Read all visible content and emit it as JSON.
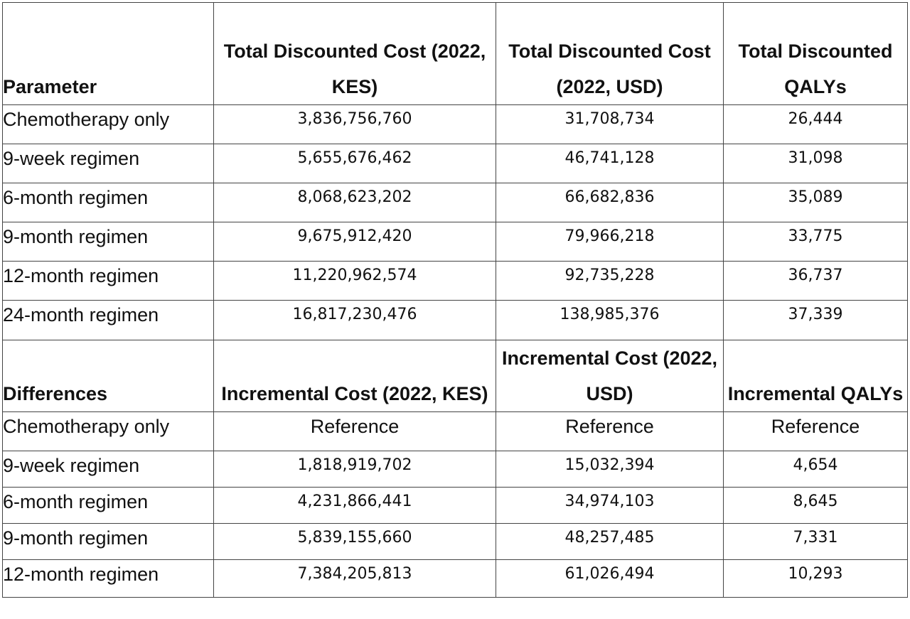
{
  "section1": {
    "headers": [
      "Parameter",
      "Total Discounted Cost (2022, KES)",
      "Total Discounted Cost (2022, USD)",
      "Total Discounted QALYs"
    ],
    "rows": [
      [
        "Chemotherapy only",
        "3,836,756,760",
        "31,708,734",
        "26,444"
      ],
      [
        "9-week regimen",
        "5,655,676,462",
        "46,741,128",
        "31,098"
      ],
      [
        "6-month regimen",
        "8,068,623,202",
        "66,682,836",
        "35,089"
      ],
      [
        "9-month regimen",
        "9,675,912,420",
        "79,966,218",
        "33,775"
      ],
      [
        "12-month regimen",
        "11,220,962,574",
        "92,735,228",
        "36,737"
      ],
      [
        "24-month regimen",
        "16,817,230,476",
        "138,985,376",
        "37,339"
      ]
    ]
  },
  "section2": {
    "headers": [
      "Differences",
      "Incremental Cost (2022, KES)",
      "Incremental Cost (2022, USD)",
      "Incremental QALYs"
    ],
    "rows": [
      [
        "Chemotherapy only",
        "Reference",
        "Reference",
        "Reference"
      ],
      [
        "9-week regimen",
        "1,818,919,702",
        "15,032,394",
        "4,654"
      ],
      [
        "6-month regimen",
        "4,231,866,441",
        "34,974,103",
        "8,645"
      ],
      [
        "9-month regimen",
        "5,839,155,660",
        "48,257,485",
        "7,331"
      ],
      [
        "12-month regimen",
        "7,384,205,813",
        "61,026,494",
        "10,293"
      ]
    ]
  }
}
